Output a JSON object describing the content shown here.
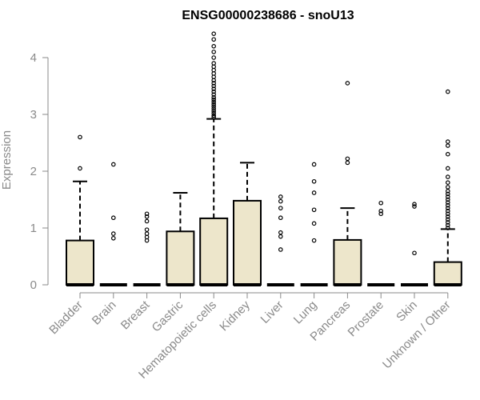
{
  "chart_data": {
    "type": "box",
    "title": "ENSG00000238686 - snoU13",
    "xlabel": "",
    "ylabel": "Expression",
    "ylim": [
      0,
      4.5
    ],
    "yticks": [
      0,
      1,
      2,
      3,
      4
    ],
    "categories": [
      "Bladder",
      "Brain",
      "Breast",
      "Gastric",
      "Hematopoietic cells",
      "Kidney",
      "Liver",
      "Lung",
      "Pancreas",
      "Prostate",
      "Skin",
      "Unknown / Other"
    ],
    "box_fill": "#ede6cb",
    "grid": false,
    "boxes": [
      {
        "category": "Bladder",
        "q1": 0,
        "median": 0,
        "q3": 0.78,
        "whisker_low": 0,
        "whisker_high": 1.82,
        "outliers": [
          2.05,
          2.6
        ]
      },
      {
        "category": "Brain",
        "q1": 0,
        "median": 0,
        "q3": 0,
        "whisker_low": 0,
        "whisker_high": 0,
        "outliers": [
          0.82,
          0.9,
          1.18,
          2.12
        ]
      },
      {
        "category": "Breast",
        "q1": 0,
        "median": 0,
        "q3": 0,
        "whisker_low": 0,
        "whisker_high": 0,
        "outliers": [
          0.78,
          0.84,
          0.9,
          0.97,
          1.12,
          1.2,
          1.25
        ]
      },
      {
        "category": "Gastric",
        "q1": 0,
        "median": 0,
        "q3": 0.94,
        "whisker_low": 0,
        "whisker_high": 1.62,
        "outliers": []
      },
      {
        "category": "Hematopoietic cells",
        "q1": 0,
        "median": 0,
        "q3": 1.17,
        "whisker_low": 0,
        "whisker_high": 2.92,
        "outliers": [
          2.95,
          2.98,
          3.02,
          3.06,
          3.1,
          3.14,
          3.18,
          3.22,
          3.26,
          3.3,
          3.35,
          3.4,
          3.45,
          3.5,
          3.55,
          3.6,
          3.66,
          3.72,
          3.78,
          3.84,
          3.9,
          4.0,
          4.1,
          4.2,
          4.32,
          4.42
        ]
      },
      {
        "category": "Kidney",
        "q1": 0,
        "median": 0,
        "q3": 1.48,
        "whisker_low": 0,
        "whisker_high": 2.15,
        "outliers": []
      },
      {
        "category": "Liver",
        "q1": 0,
        "median": 0,
        "q3": 0,
        "whisker_low": 0,
        "whisker_high": 0,
        "outliers": [
          0.62,
          0.85,
          0.92,
          1.18,
          1.35,
          1.47,
          1.55
        ]
      },
      {
        "category": "Lung",
        "q1": 0,
        "median": 0,
        "q3": 0,
        "whisker_low": 0,
        "whisker_high": 0,
        "outliers": [
          0.78,
          1.08,
          1.32,
          1.62,
          1.82,
          2.12
        ]
      },
      {
        "category": "Pancreas",
        "q1": 0,
        "median": 0,
        "q3": 0.79,
        "whisker_low": 0,
        "whisker_high": 1.35,
        "outliers": [
          2.15,
          2.22,
          3.55
        ]
      },
      {
        "category": "Prostate",
        "q1": 0,
        "median": 0,
        "q3": 0,
        "whisker_low": 0,
        "whisker_high": 0,
        "outliers": [
          1.25,
          1.3,
          1.44
        ]
      },
      {
        "category": "Skin",
        "q1": 0,
        "median": 0,
        "q3": 0,
        "whisker_low": 0,
        "whisker_high": 0,
        "outliers": [
          0.56,
          1.38,
          1.42
        ]
      },
      {
        "category": "Unknown / Other",
        "q1": 0,
        "median": 0,
        "q3": 0.4,
        "whisker_low": 0,
        "whisker_high": 0.98,
        "outliers": [
          1.0,
          1.05,
          1.1,
          1.15,
          1.2,
          1.25,
          1.3,
          1.35,
          1.4,
          1.45,
          1.5,
          1.55,
          1.6,
          1.65,
          1.72,
          1.8,
          1.9,
          2.05,
          2.3,
          2.45,
          2.52,
          3.4
        ]
      }
    ]
  }
}
